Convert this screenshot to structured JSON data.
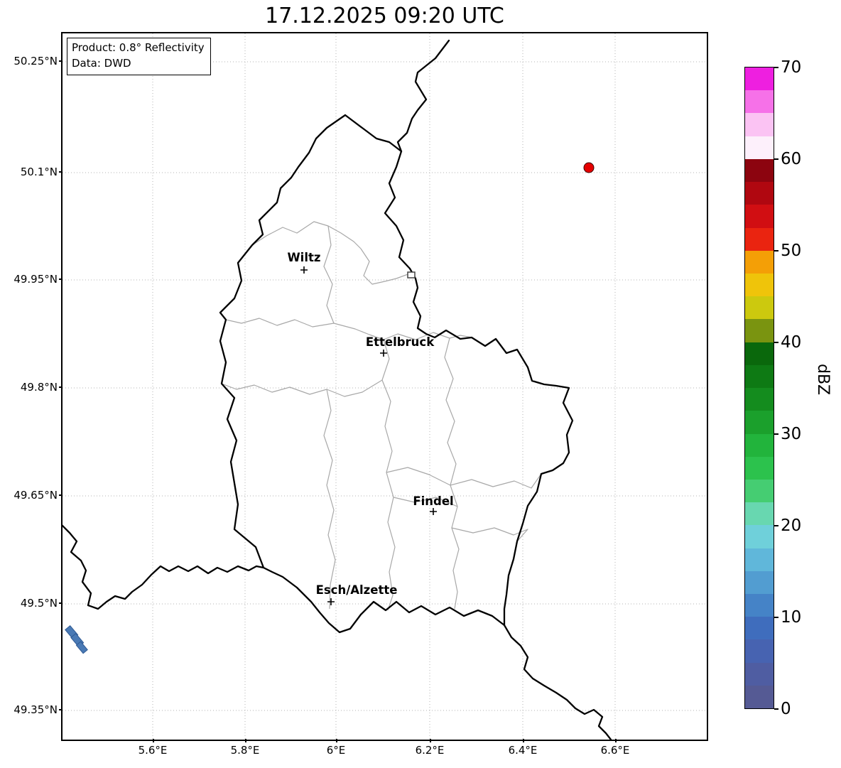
{
  "title": "17.12.2025 09:20 UTC",
  "info_box": {
    "product": "Product: 0.8° Reflectivity",
    "source": "Data: DWD"
  },
  "cities": [
    {
      "name": "Wiltz"
    },
    {
      "name": "Ettelbruck"
    },
    {
      "name": "Findel"
    },
    {
      "name": "Esch/Alzette"
    }
  ],
  "axes": {
    "lat_ticks": [
      "50.25°N",
      "50.1°N",
      "49.95°N",
      "49.8°N",
      "49.65°N",
      "49.5°N",
      "49.35°N"
    ],
    "lon_ticks": [
      "5.6°E",
      "5.8°E",
      "6°E",
      "6.2°E",
      "6.4°E",
      "6.6°E"
    ]
  },
  "colorbar": {
    "label": "dBZ",
    "tick_labels": [
      "70",
      "60",
      "50",
      "40",
      "30",
      "20",
      "10",
      "0"
    ],
    "min": 0,
    "max": 70,
    "colors_bottom_to_top": [
      "#555a94",
      "#4f5da2",
      "#4763b1",
      "#3f6dbd",
      "#4583c7",
      "#529dd1",
      "#60b7da",
      "#6fd0da",
      "#68d7b0",
      "#45cd72",
      "#2cc24d",
      "#22b43c",
      "#1ba02c",
      "#148c1e",
      "#0e7a14",
      "#0a680c",
      "#7a9410",
      "#ccc90e",
      "#efc40a",
      "#f49f06",
      "#ea2410",
      "#d10e12",
      "#b00710",
      "#8c040f",
      "#fdf0fb",
      "#fbc3f3",
      "#f671e8",
      "#ee1fe0"
    ]
  },
  "markers": {
    "radar_location_color": "#e50000",
    "echo_color": "#4a7ab5",
    "border_color": "#000000",
    "canton_border_color": "#a8a8a8"
  }
}
